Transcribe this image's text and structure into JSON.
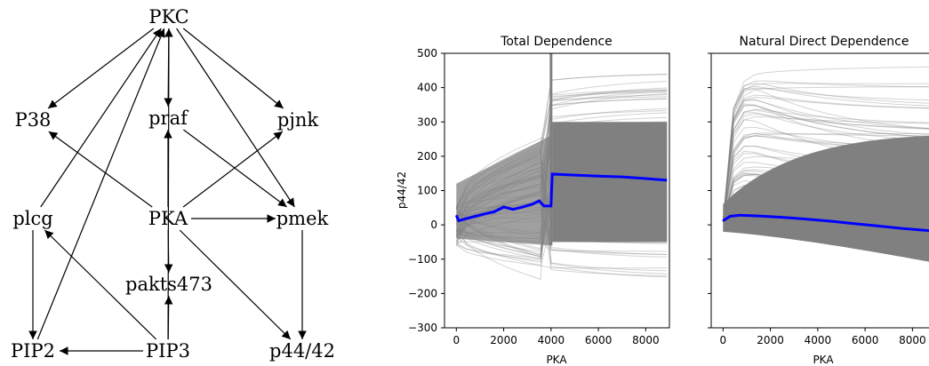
{
  "diagram": {
    "nodes": {
      "pkc": "PKC",
      "p38": "P38",
      "praf": "praf",
      "pjnk": "pjnk",
      "plcg": "plcg",
      "pka": "PKA",
      "pmek": "pmek",
      "pakts473": "pakts473",
      "pip2": "PIP2",
      "pip3": "PIP3",
      "p4442": "p44/42"
    },
    "edges": [
      [
        "pkc",
        "p38"
      ],
      [
        "pkc",
        "praf"
      ],
      [
        "pkc",
        "pjnk"
      ],
      [
        "pkc",
        "pmek"
      ],
      [
        "pka",
        "p38"
      ],
      [
        "pka",
        "praf"
      ],
      [
        "pka",
        "pjnk"
      ],
      [
        "pka",
        "pmek"
      ],
      [
        "pka",
        "pakts473"
      ],
      [
        "pka",
        "p4442"
      ],
      [
        "praf",
        "pmek"
      ],
      [
        "pmek",
        "p4442"
      ],
      [
        "plcg",
        "pkc"
      ],
      [
        "plcg",
        "pip2"
      ],
      [
        "pip2",
        "pkc"
      ],
      [
        "pip3",
        "pkc"
      ],
      [
        "pip3",
        "pip2"
      ],
      [
        "pip3",
        "plcg"
      ],
      [
        "pip3",
        "pakts473"
      ]
    ]
  },
  "chart_data": [
    {
      "type": "line",
      "title": "Total Dependence",
      "xlabel": "PKA",
      "ylabel": "p44/42",
      "xlim": [
        -500,
        9000
      ],
      "ylim": [
        -300,
        500
      ],
      "xticks": [
        0,
        2000,
        4000,
        6000,
        8000
      ],
      "yticks": [
        -300,
        -200,
        -100,
        0,
        100,
        200,
        300,
        400,
        500
      ],
      "series": [
        {
          "color": "#0000ff",
          "x": [
            0,
            100,
            400,
            800,
            1200,
            1600,
            2000,
            2400,
            2800,
            3200,
            3500,
            3700,
            4000,
            4050,
            5000,
            6000,
            7000,
            8000,
            8900
          ],
          "y": [
            28,
            12,
            18,
            25,
            32,
            38,
            52,
            45,
            52,
            60,
            70,
            55,
            55,
            148,
            145,
            142,
            140,
            135,
            130
          ]
        }
      ],
      "background_lines": {
        "color": "#808080",
        "band_upper": 300,
        "band_lower": -50
      }
    },
    {
      "type": "line",
      "title": "Natural Direct Dependence",
      "xlabel": "PKA",
      "ylabel": "",
      "xlim": [
        -500,
        9000
      ],
      "ylim": [
        -300,
        500
      ],
      "xticks": [
        0,
        2000,
        4000,
        6000,
        8000
      ],
      "series": [
        {
          "color": "#0000ff",
          "x": [
            0,
            300,
            700,
            1500,
            2500,
            3500,
            4500,
            5500,
            6500,
            7500,
            8900
          ],
          "y": [
            12,
            25,
            28,
            26,
            22,
            17,
            11,
            4,
            -3,
            -10,
            -18
          ]
        }
      ],
      "background_lines": {
        "color": "#808080"
      }
    }
  ]
}
